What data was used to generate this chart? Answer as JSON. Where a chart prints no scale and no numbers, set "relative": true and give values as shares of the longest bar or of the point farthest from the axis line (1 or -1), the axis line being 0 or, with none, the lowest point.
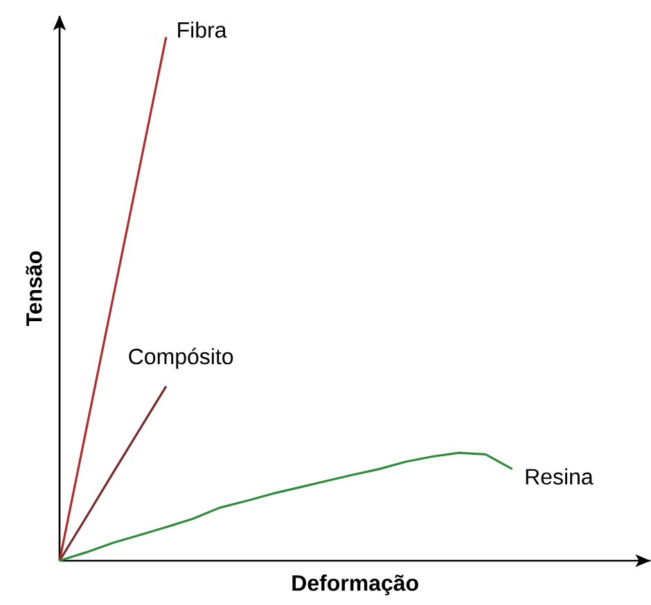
{
  "chart_data": {
    "type": "line",
    "relative": true,
    "xlabel": "Deformação",
    "ylabel": "Tensão",
    "legend": false,
    "tick_labels": false,
    "marker": "none",
    "line_style": "solid",
    "categories": [
      null,
      null,
      null,
      null,
      null,
      null,
      null,
      null,
      null,
      null,
      null,
      null,
      null,
      null,
      null,
      null,
      null,
      null
    ],
    "series": [
      {
        "name": "Fibra",
        "color": "#b22a2a",
        "values": [
          0,
          0.25,
          0.5,
          0.75,
          1,
          null,
          null,
          null,
          null,
          null,
          null,
          null,
          null,
          null,
          null,
          null,
          null,
          null
        ]
      },
      {
        "name": "Compósito",
        "color": "#7a2a2a",
        "values": [
          0,
          0.083,
          0.167,
          0.25,
          0.333,
          null,
          null,
          null,
          null,
          null,
          null,
          null,
          null,
          null,
          null,
          null,
          null,
          null
        ]
      },
      {
        "name": "Resina",
        "color": "#2e8b3a",
        "values": [
          0,
          0.016,
          0.034,
          0.049,
          0.064,
          0.08,
          0.101,
          0.114,
          0.128,
          0.14,
          0.152,
          0.164,
          0.175,
          0.189,
          0.199,
          0.206,
          0.203,
          0.175
        ]
      }
    ]
  }
}
